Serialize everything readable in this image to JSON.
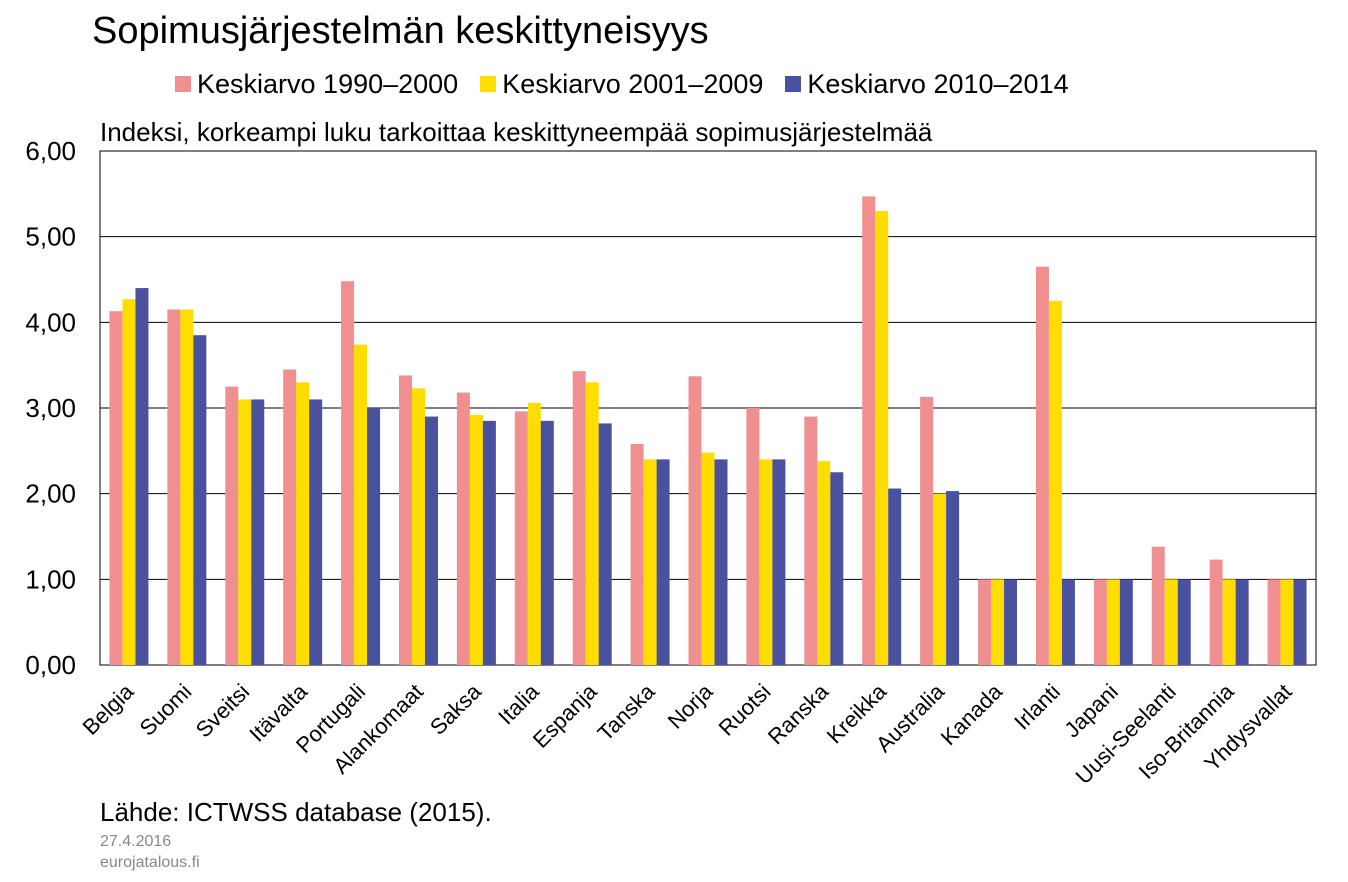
{
  "title": "Sopimusjärjestelmän keskittyneisyys",
  "subtitle": "Indeksi, korkeampi luku tarkoittaa keskittyneempää sopimusjärjestelmää",
  "source": "Lähde: ICTWSS database (2015).",
  "date": "27.4.2016",
  "site": "eurojatalous.fi",
  "chart_data": {
    "type": "bar",
    "ylim": [
      0,
      6
    ],
    "yticks": [
      "0,00",
      "1,00",
      "2,00",
      "3,00",
      "4,00",
      "5,00",
      "6,00"
    ],
    "grid": true,
    "legend_position": "top",
    "categories": [
      "Belgia",
      "Suomi",
      "Sveitsi",
      "Itävalta",
      "Portugali",
      "Alankomaat",
      "Saksa",
      "Italia",
      "Espanja",
      "Tanska",
      "Norja",
      "Ruotsi",
      "Ranska",
      "Kreikka",
      "Australia",
      "Kanada",
      "Irlanti",
      "Japani",
      "Uusi-Seelanti",
      "Iso-Britannia",
      "Yhdysvallat"
    ],
    "series": [
      {
        "name": "Keskiarvo 1990–2000",
        "color": "#f08f8f",
        "values": [
          4.13,
          4.15,
          3.25,
          3.45,
          4.48,
          3.38,
          3.18,
          2.96,
          3.43,
          2.58,
          3.37,
          3.0,
          2.9,
          5.47,
          3.13,
          1.0,
          4.65,
          1.0,
          1.38,
          1.23,
          1.0
        ]
      },
      {
        "name": "Keskiarvo 2001–2009",
        "color": "#ffdd00",
        "values": [
          4.27,
          4.15,
          3.1,
          3.3,
          3.74,
          3.23,
          2.92,
          3.06,
          3.3,
          2.4,
          2.48,
          2.4,
          2.38,
          5.3,
          2.0,
          1.0,
          4.25,
          1.0,
          1.0,
          1.0,
          1.0
        ]
      },
      {
        "name": "Keskiarvo 2010–2014",
        "color": "#4a52a0",
        "values": [
          4.4,
          3.85,
          3.1,
          3.1,
          3.0,
          2.9,
          2.85,
          2.85,
          2.82,
          2.4,
          2.4,
          2.4,
          2.25,
          2.06,
          2.03,
          1.0,
          1.0,
          1.0,
          1.0,
          1.0,
          1.0
        ]
      }
    ]
  }
}
